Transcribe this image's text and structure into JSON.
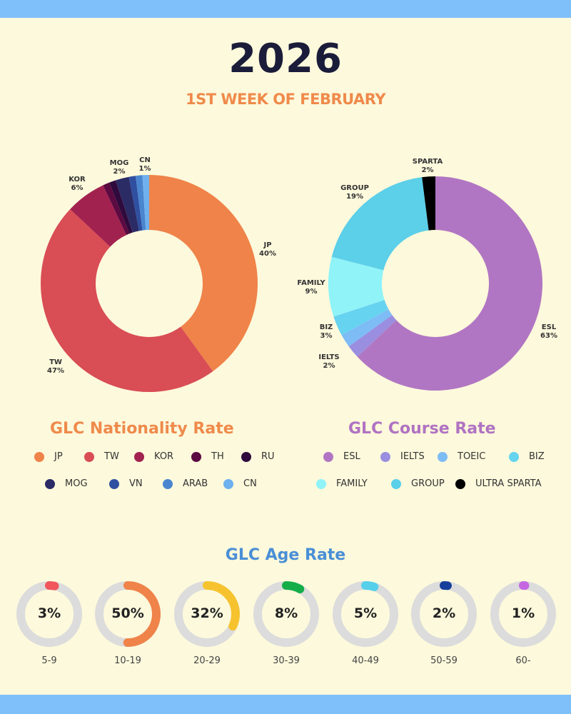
{
  "title": "2026",
  "subtitle": "1ST WEEK OF FEBRUARY",
  "nationality": {
    "title": "GLC Nationality Rate",
    "title_color": "#ef8a4b"
  },
  "course": {
    "title": "GLC Course Rate",
    "title_color": "#b073c2"
  },
  "age": {
    "title": "GLC Age Rate"
  },
  "chart_data": [
    {
      "type": "pie",
      "title": "GLC Nationality Rate",
      "donut": true,
      "categories": [
        "JP",
        "TW",
        "KOR",
        "TH",
        "RU",
        "MOG",
        "VN",
        "ARAB",
        "CN"
      ],
      "values": [
        40,
        47,
        6,
        1,
        1,
        2,
        1,
        1,
        1
      ],
      "colors": [
        "#ef8349",
        "#d94d55",
        "#a2224f",
        "#5c0a42",
        "#2f0a3c",
        "#2b2b66",
        "#2f4fa0",
        "#4a86cf",
        "#6fb0ee"
      ],
      "labels": [
        {
          "name": "JP",
          "pct": "40%"
        },
        {
          "name": "TW",
          "pct": "47%"
        },
        {
          "name": "KOR",
          "pct": "6%"
        },
        {
          "name": "MOG",
          "pct": "2%"
        },
        {
          "name": "CN",
          "pct": "1%"
        }
      ]
    },
    {
      "type": "pie",
      "title": "GLC Course Rate",
      "donut": true,
      "categories": [
        "ESL",
        "IELTS",
        "TOEIC",
        "BIZ",
        "FAMILY",
        "GROUP",
        "ULTRA SPARTA"
      ],
      "values": [
        63,
        2,
        2,
        3,
        9,
        19,
        2
      ],
      "colors": [
        "#b176c3",
        "#9a8ee0",
        "#7ebcf6",
        "#66d3f0",
        "#8ff3f8",
        "#5ccfe9",
        "#000000"
      ],
      "labels": [
        {
          "name": "ESL",
          "pct": "63%"
        },
        {
          "name": "IELTS",
          "pct": "2%"
        },
        {
          "name": "BIZ",
          "pct": "3%"
        },
        {
          "name": "FAMILY",
          "pct": "9%"
        },
        {
          "name": "GROUP",
          "pct": "19%"
        },
        {
          "name": "SPARTA",
          "pct": "2%"
        }
      ]
    },
    {
      "type": "pie",
      "title": "GLC Age Rate",
      "categories": [
        "5-9",
        "10-19",
        "20-29",
        "30-39",
        "40-49",
        "50-59",
        "60-"
      ],
      "values": [
        3,
        50,
        32,
        8,
        5,
        2,
        1
      ],
      "value_labels": [
        "3%",
        "50%",
        "32%",
        "8%",
        "5%",
        "2%",
        "1%"
      ],
      "colors": [
        "#f0565c",
        "#ef8349",
        "#f6c32e",
        "#13ae4a",
        "#56d0ea",
        "#163f9b",
        "#c566e0"
      ]
    }
  ]
}
